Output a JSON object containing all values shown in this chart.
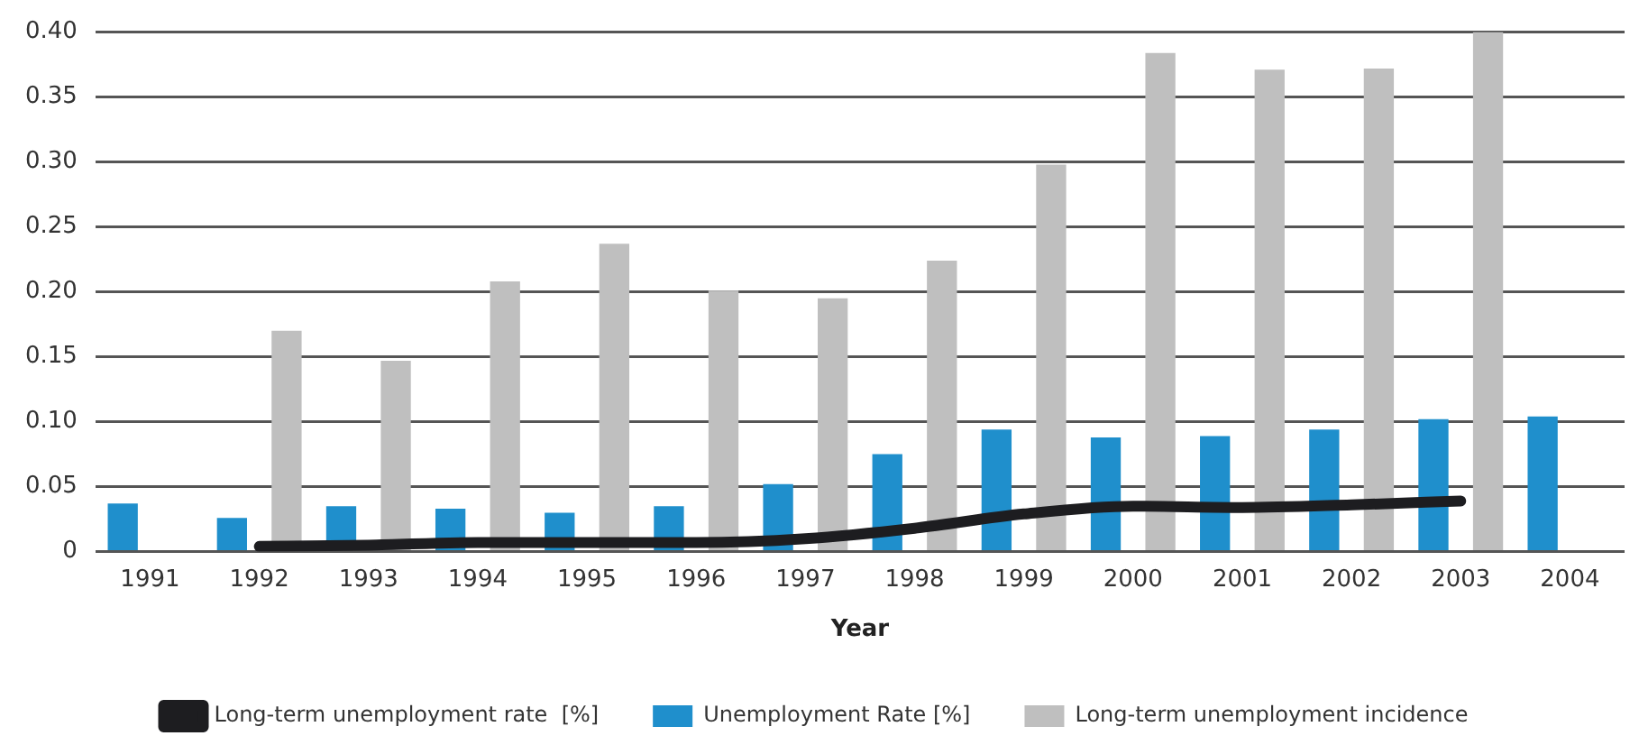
{
  "chart_data": {
    "type": "bar",
    "xlabel": "Year",
    "categories": [
      "1991",
      "1992",
      "1993",
      "1994",
      "1995",
      "1996",
      "1997",
      "1998",
      "1999",
      "2000",
      "2001",
      "2002",
      "2003",
      "2004"
    ],
    "series": [
      {
        "name": "Unemployment Rate [%]",
        "color": "#1f8fcc",
        "values": [
          0.037,
          0.026,
          0.035,
          0.033,
          0.03,
          0.035,
          0.052,
          0.075,
          0.094,
          0.088,
          0.089,
          0.094,
          0.102,
          0.104
        ]
      },
      {
        "name": "Long-term unemployment incidence",
        "color": "#bfbfbf",
        "values": [
          null,
          0.17,
          0.147,
          0.208,
          0.237,
          0.201,
          0.195,
          0.224,
          0.298,
          0.384,
          0.371,
          0.372,
          0.4,
          null
        ]
      },
      {
        "name": "Long-term unemployment rate  [%]",
        "type": "line",
        "color": "#1d1d20",
        "values": [
          null,
          0.004,
          0.005,
          0.007,
          0.007,
          0.007,
          0.01,
          0.018,
          0.029,
          0.035,
          0.034,
          0.036,
          0.039,
          null
        ]
      }
    ],
    "ylim": [
      0,
      0.4
    ],
    "yticks": [
      {
        "value": 0,
        "label": "0"
      },
      {
        "value": 0.05,
        "label": "0.05"
      },
      {
        "value": 0.1,
        "label": "0.10"
      },
      {
        "value": 0.15,
        "label": "0.15"
      },
      {
        "value": 0.2,
        "label": "0.20"
      },
      {
        "value": 0.25,
        "label": "0.25"
      },
      {
        "value": 0.3,
        "label": "0.30"
      },
      {
        "value": 0.35,
        "label": "0.35"
      },
      {
        "value": 0.4,
        "label": "0.40"
      }
    ],
    "grid": "y",
    "legend": "bottom",
    "marker": "none"
  }
}
